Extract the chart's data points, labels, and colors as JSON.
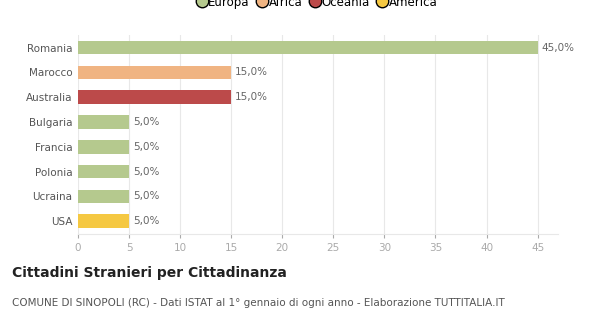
{
  "categories": [
    "Romania",
    "Marocco",
    "Australia",
    "Bulgaria",
    "Francia",
    "Polonia",
    "Ucraina",
    "USA"
  ],
  "values": [
    45.0,
    15.0,
    15.0,
    5.0,
    5.0,
    5.0,
    5.0,
    5.0
  ],
  "bar_colors": [
    "#b5c98e",
    "#f0b482",
    "#bc4a4a",
    "#b5c98e",
    "#b5c98e",
    "#b5c98e",
    "#b5c98e",
    "#f5c842"
  ],
  "labels": [
    "45,0%",
    "15,0%",
    "15,0%",
    "5,0%",
    "5,0%",
    "5,0%",
    "5,0%",
    "5,0%"
  ],
  "xlim": [
    0,
    47
  ],
  "xticks": [
    0,
    5,
    10,
    15,
    20,
    25,
    30,
    35,
    40,
    45
  ],
  "legend_entries": [
    {
      "label": "Europa",
      "color": "#b5c98e"
    },
    {
      "label": "Africa",
      "color": "#f0b482"
    },
    {
      "label": "Oceania",
      "color": "#bc4a4a"
    },
    {
      "label": "America",
      "color": "#f5c842"
    }
  ],
  "title": "Cittadini Stranieri per Cittadinanza",
  "subtitle": "COMUNE DI SINOPOLI (RC) - Dati ISTAT al 1° gennaio di ogni anno - Elaborazione TUTTITALIA.IT",
  "bg_color": "#ffffff",
  "grid_color": "#e8e8e8",
  "bar_height": 0.55,
  "label_fontsize": 7.5,
  "title_fontsize": 10,
  "subtitle_fontsize": 7.5,
  "legend_fontsize": 8.5,
  "ytick_fontsize": 7.5,
  "xtick_fontsize": 7.5
}
